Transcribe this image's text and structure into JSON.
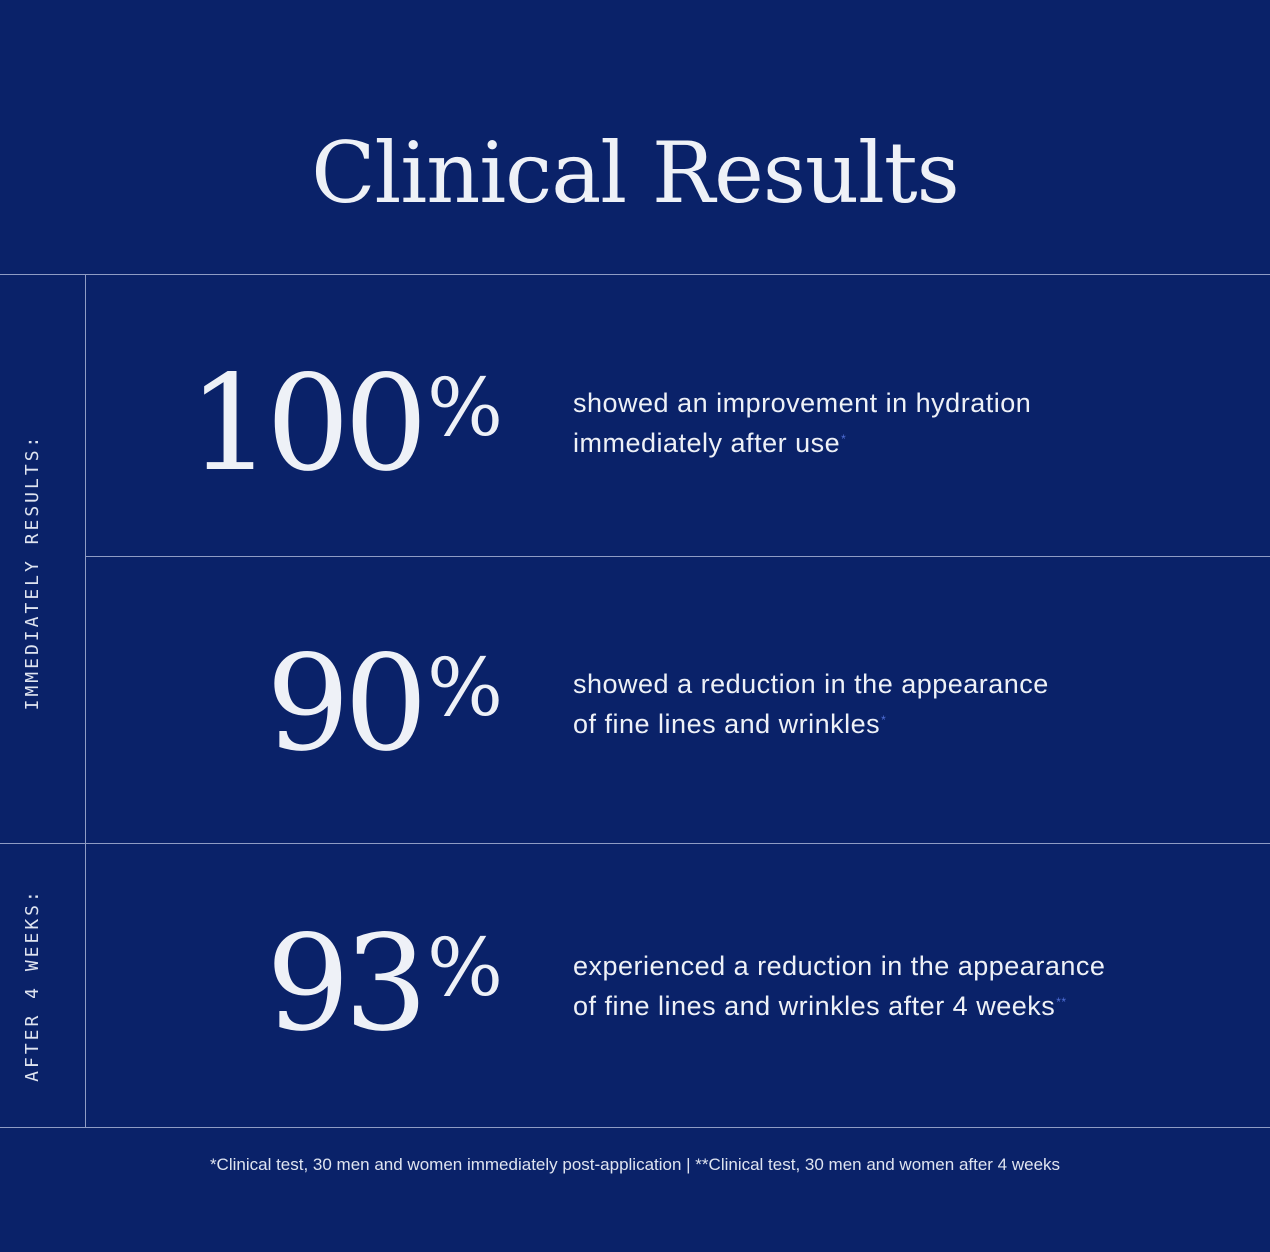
{
  "title": "Clinical Results",
  "sections": [
    {
      "label": "IMMEDIATELY RESULTS:"
    },
    {
      "label": "AFTER 4 WEEKS:"
    }
  ],
  "stats": [
    {
      "number": "100",
      "percent": "%",
      "line1": "showed an improvement in hydration",
      "line2": "immediately after use",
      "marker": "*"
    },
    {
      "number": "90",
      "percent": "%",
      "line1": "showed a reduction in the appearance",
      "line2": "of fine lines and wrinkles",
      "marker": "*"
    },
    {
      "number": "93",
      "percent": "%",
      "line1": "experienced a reduction in the appearance",
      "line2": "of fine lines and wrinkles after 4 weeks",
      "marker": "**"
    }
  ],
  "footnote": "*Clinical test, 30 men and women immediately post-application  |  **Clinical test, 30 men and women after 4 weeks",
  "colors": {
    "background": "#0a2269",
    "text": "#eef1f7",
    "divider": "#8f9cc4",
    "marker": "#4f6ed6"
  }
}
